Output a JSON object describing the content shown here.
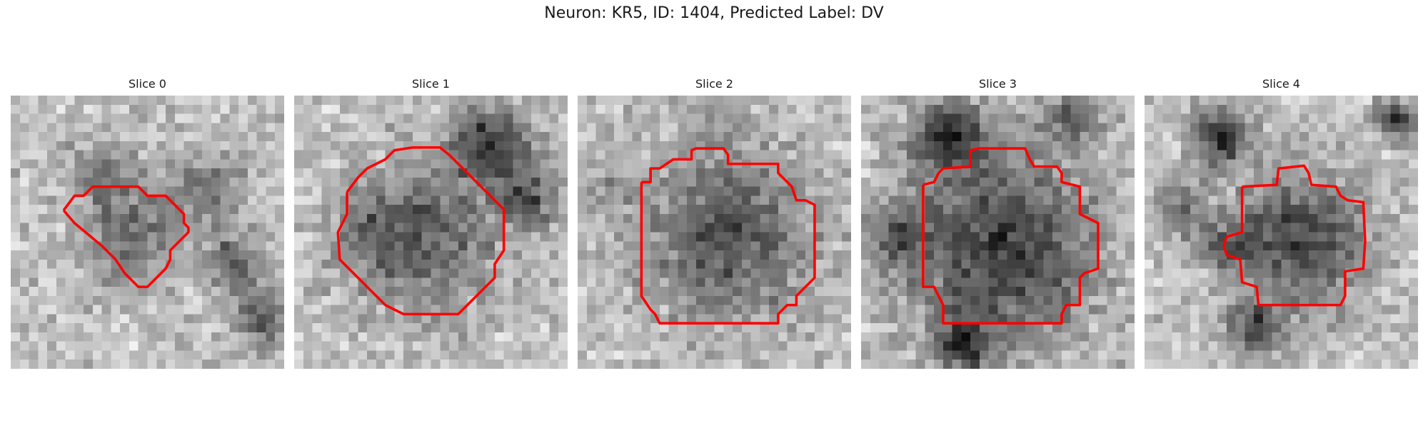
{
  "figure": {
    "title": "Neuron: KR5, ID: 1404, Predicted Label: DV"
  },
  "slices": [
    {
      "label": "Slice 0",
      "contour_color": "#ff0000"
    },
    {
      "label": "Slice 1",
      "contour_color": "#ff0000"
    },
    {
      "label": "Slice 2",
      "contour_color": "#ff0000"
    },
    {
      "label": "Slice 3",
      "contour_color": "#ff0000"
    },
    {
      "label": "Slice 4",
      "contour_color": "#ff0000"
    }
  ]
}
